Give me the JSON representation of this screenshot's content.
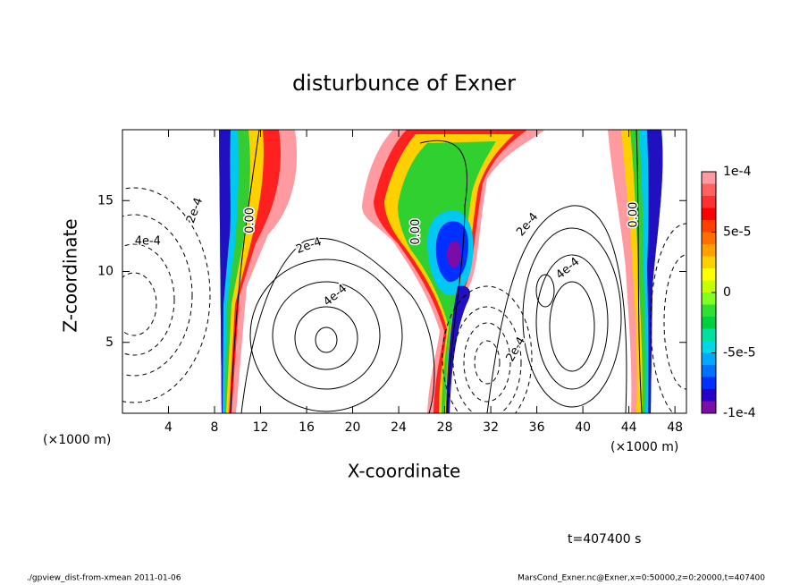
{
  "chart_data": {
    "type": "contour",
    "title": "disturbunce of Exner",
    "x_label": "X-coordinate",
    "y_label": "Z-coordinate",
    "x_unit_left": "(×1000 m)",
    "x_unit_right": "(×1000 m)",
    "time_label": "t=407400 s",
    "footer_left": "./gpview_dist-from-xmean  2011-01-06",
    "footer_right": "MarsCond_Exner.nc@Exner,x=0:50000,z=0:20000,t=407400",
    "xlim": [
      0,
      49
    ],
    "ylim": [
      0,
      20
    ],
    "xticks": [
      4,
      8,
      12,
      16,
      20,
      24,
      28,
      32,
      36,
      40,
      44,
      48
    ],
    "yticks": [
      5,
      10,
      15
    ],
    "contour_labels": [
      {
        "text": "2e-4",
        "x": 6.3,
        "y": 14.3
      },
      {
        "text": "4e-4",
        "x": 2.2,
        "y": 12.1
      },
      {
        "text": "0.00",
        "x": 11.1,
        "y": 13.6
      },
      {
        "text": "2e-4",
        "x": 16.2,
        "y": 11.8
      },
      {
        "text": "4e-4",
        "x": 18.5,
        "y": 8.3
      },
      {
        "text": "0.00",
        "x": 25.5,
        "y": 12.8
      },
      {
        "text": "2e-4",
        "x": 35.2,
        "y": 13.3
      },
      {
        "text": "4e-4",
        "x": 38.7,
        "y": 10.2
      },
      {
        "text": "0.00",
        "x": 44.4,
        "y": 14.0
      },
      {
        "text": "2e-4",
        "x": 34.2,
        "y": 4.5
      }
    ],
    "colorbar": {
      "levels": [
        -0.0001,
        -9e-05,
        -8e-05,
        -7e-05,
        -6e-05,
        -5e-05,
        -4e-05,
        -3e-05,
        -2e-05,
        -1e-05,
        0,
        1e-05,
        2e-05,
        3e-05,
        4e-05,
        5e-05,
        6e-05,
        7e-05,
        8e-05,
        9e-05,
        0.0001
      ],
      "colors": [
        "#7a0ca8",
        "#2a00c8",
        "#0030ff",
        "#0070ff",
        "#00a8ff",
        "#00d8e8",
        "#00e0a0",
        "#00d040",
        "#30e030",
        "#80ff20",
        "#c8ff00",
        "#ffff00",
        "#ffd000",
        "#ffa000",
        "#ff7000",
        "#ff4000",
        "#ff0000",
        "#ff3030",
        "#ff6060",
        "#ff9aa0"
      ],
      "ticks": [
        {
          "value": 0.0001,
          "label": "1e-4"
        },
        {
          "value": 5e-05,
          "label": "5e-5"
        },
        0,
        {
          "value": -5e-05,
          "label": "-5e-5"
        },
        {
          "value": -0.0001,
          "label": "-1e-4"
        }
      ]
    }
  }
}
